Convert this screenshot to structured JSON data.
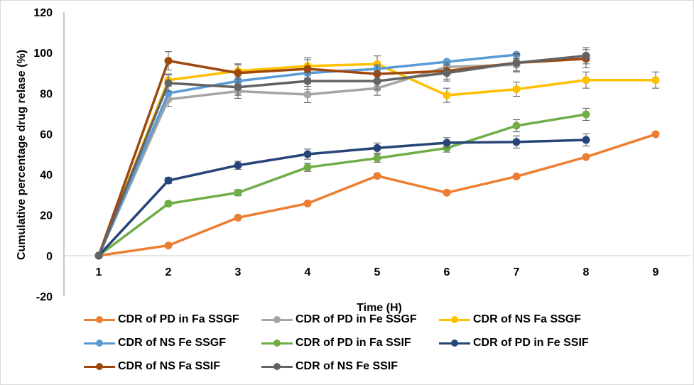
{
  "chart_data": {
    "type": "line",
    "title": "",
    "xlabel": "Time (H)",
    "ylabel": "Cumulative percentage drug relase (%)",
    "x": [
      1,
      2,
      3,
      4,
      5,
      6,
      7,
      8,
      9
    ],
    "xticks": [
      "1",
      "2",
      "3",
      "4",
      "5",
      "6",
      "7",
      "8",
      "9"
    ],
    "ylim": [
      -20,
      120
    ],
    "yticks": [
      "-20",
      "0",
      "20",
      "40",
      "60",
      "80",
      "100",
      "120"
    ],
    "ytick_values": [
      -20,
      0,
      20,
      40,
      60,
      80,
      100,
      120
    ],
    "grid": false,
    "legend_position": "bottom",
    "series": [
      {
        "name": "CDR of PD in Fa SSGF",
        "color": "#ED7D31",
        "values": [
          0,
          5,
          18.7,
          25.7,
          39.3,
          31,
          39,
          48.6,
          59.8
        ],
        "errors": [
          0,
          0,
          0,
          0,
          0,
          0,
          0,
          0,
          0
        ]
      },
      {
        "name": "CDR of PD in Fe SSGF",
        "color": "#A5A5A5",
        "values": [
          0,
          77,
          81,
          79.4,
          82.5,
          93,
          94,
          null,
          null
        ],
        "errors": [
          0,
          3.5,
          3.5,
          4,
          3.5,
          3,
          3,
          0,
          0
        ]
      },
      {
        "name": "CDR of NS Fa SSGF",
        "color": "#FFC000",
        "values": [
          0,
          86.5,
          91,
          93.4,
          94.4,
          79,
          82,
          86.5,
          86.5
        ],
        "errors": [
          0,
          3,
          3,
          4,
          4,
          3.5,
          3.5,
          4,
          4
        ]
      },
      {
        "name": "CDR of NS Fe SSGF",
        "color": "#5B9BD5",
        "values": [
          0,
          80,
          86,
          90,
          92,
          95.5,
          99,
          null,
          null
        ],
        "errors": [
          0,
          0,
          0,
          0,
          0,
          0,
          0,
          0,
          0
        ]
      },
      {
        "name": "CDR of PD in Fa SSIF",
        "color": "#70AD47",
        "values": [
          0,
          25.6,
          31,
          43.5,
          48,
          53,
          64,
          69.6,
          null
        ],
        "errors": [
          0,
          1,
          1.5,
          2,
          2,
          2,
          3,
          3,
          0
        ]
      },
      {
        "name": "CDR of PD in Fe SSIF",
        "color": "#264478",
        "values": [
          0,
          37,
          44.5,
          50,
          53,
          55.6,
          56,
          57,
          null
        ],
        "errors": [
          0,
          1.5,
          2,
          2.5,
          2.5,
          2.5,
          3,
          3,
          0
        ]
      },
      {
        "name": "CDR of NS Fa SSIF",
        "color": "#9E480E",
        "values": [
          0,
          96,
          90,
          92,
          89.5,
          91,
          95,
          97,
          null
        ],
        "errors": [
          0,
          4.5,
          4.5,
          4.5,
          4.5,
          4,
          4.5,
          4.5,
          0
        ]
      },
      {
        "name": "CDR of NS Fe SSIF",
        "color": "#636363",
        "values": [
          0,
          85,
          83,
          86,
          86,
          90,
          95,
          98.5,
          null
        ],
        "errors": [
          0,
          4,
          4,
          4,
          4,
          4,
          4,
          4,
          0
        ]
      }
    ]
  }
}
